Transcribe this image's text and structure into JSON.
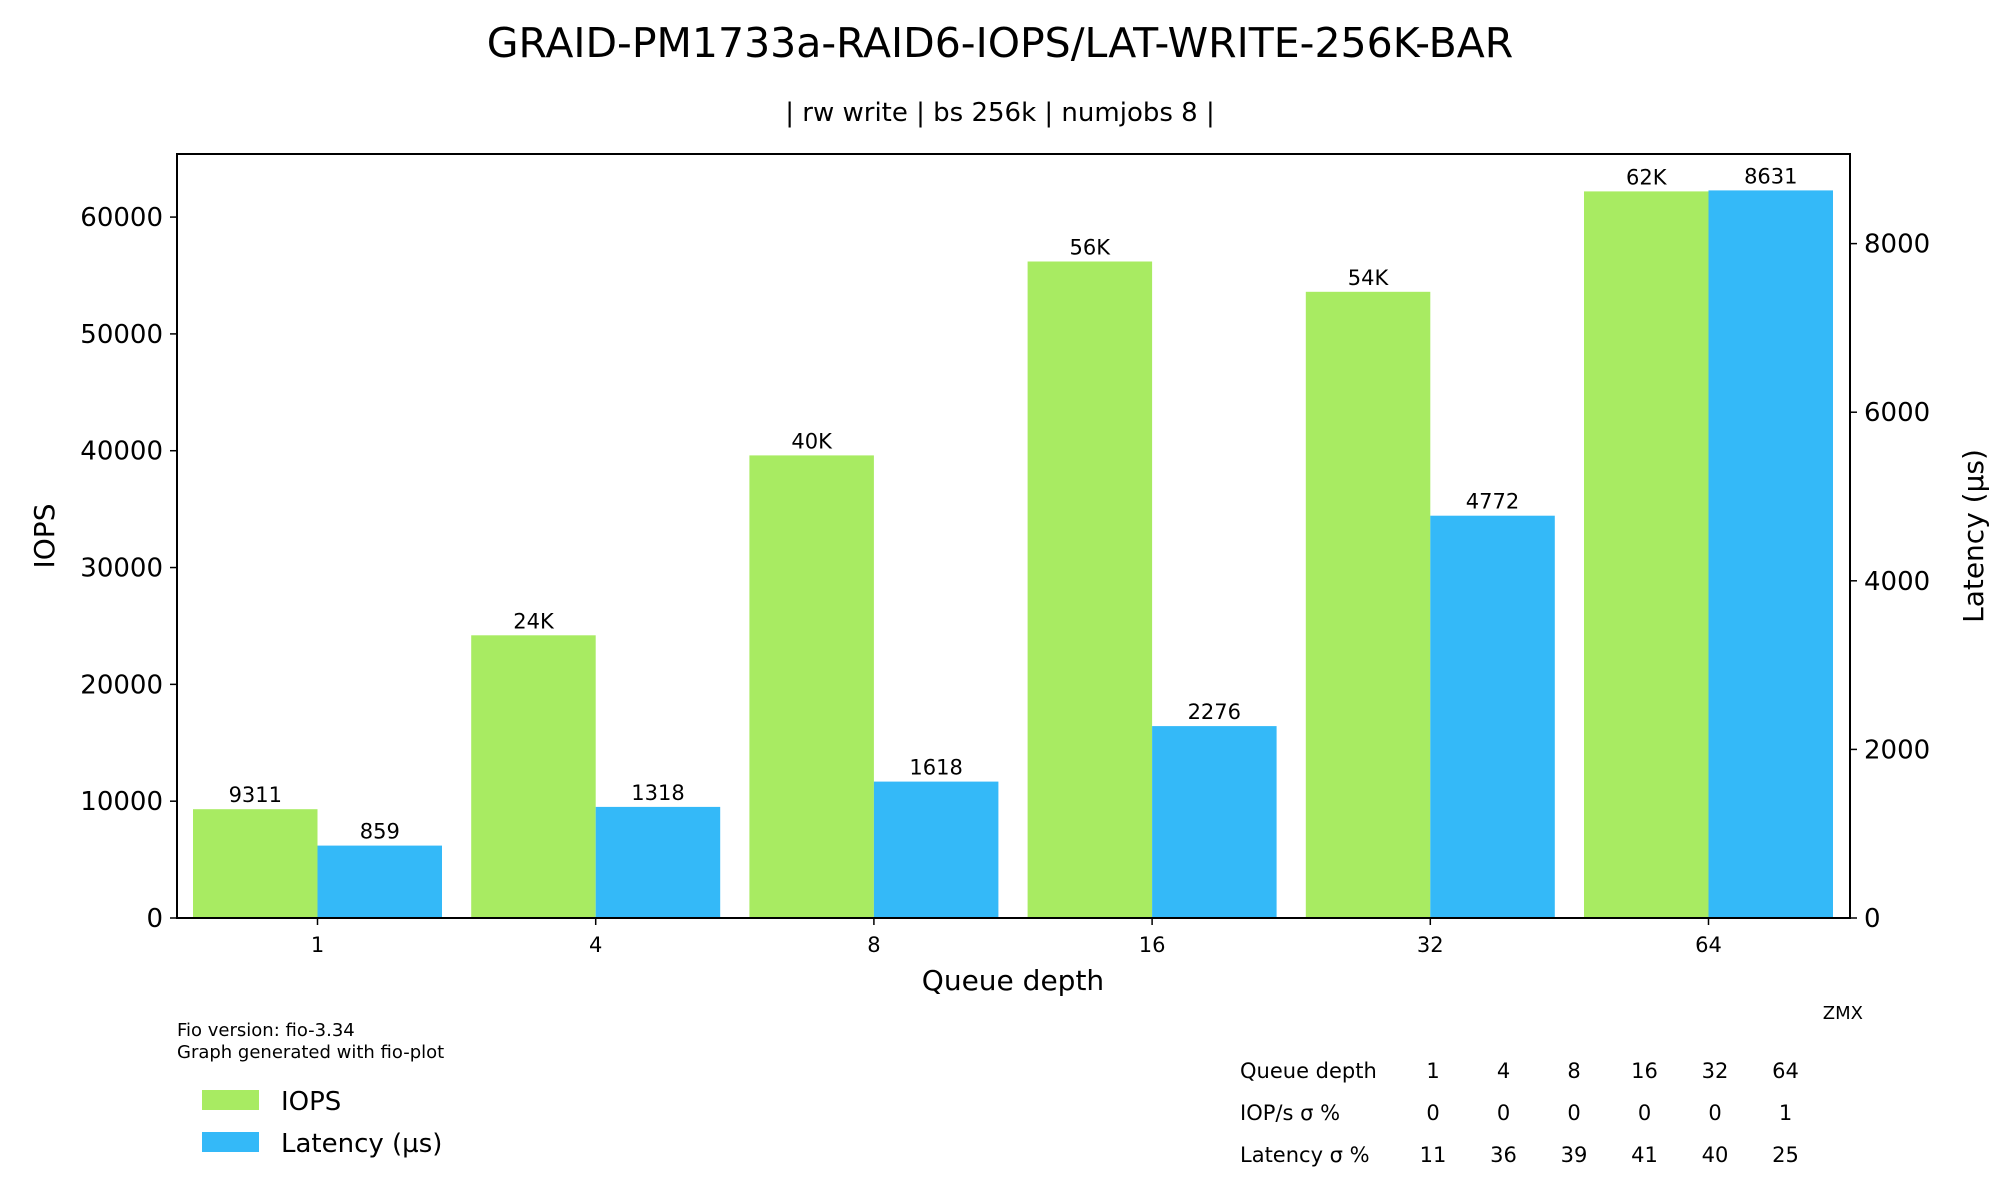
{
  "chart_data": {
    "type": "bar",
    "title": "GRAID-PM1733a-RAID6-IOPS/LAT-WRITE-256K-BAR",
    "subtitle": "| rw write | bs 256k | numjobs 8 |",
    "xlabel": "Queue depth",
    "ylabel_left": "IOPS",
    "ylabel_right": "Latency (µs)",
    "categories": [
      "1",
      "4",
      "8",
      "16",
      "32",
      "64"
    ],
    "ylim_left": [
      0,
      65400
    ],
    "ylim_right": [
      0,
      9063
    ],
    "yticks_left": [
      0,
      10000,
      20000,
      30000,
      40000,
      50000,
      60000
    ],
    "yticks_right": [
      0,
      2000,
      4000,
      6000,
      8000
    ],
    "grid": false,
    "series": [
      {
        "name": "IOPS",
        "axis": "left",
        "color": "#a8eb62",
        "values": [
          9311,
          24200,
          39600,
          56200,
          53600,
          62200
        ],
        "labels": [
          "9311",
          "24K",
          "40K",
          "56K",
          "54K",
          "62K"
        ]
      },
      {
        "name": "Latency (µs)",
        "axis": "right",
        "color": "#34b9f8",
        "values": [
          859,
          1318,
          1618,
          2276,
          4772,
          8631
        ],
        "labels": [
          "859",
          "1318",
          "1618",
          "2276",
          "4772",
          "8631"
        ]
      }
    ],
    "legend_placement": "bottom-left",
    "footnote_lines": [
      "Fio version: fio-3.34",
      "Graph generated with fio-plot"
    ],
    "corner_text": "ZMX",
    "stats_table": {
      "rows": [
        {
          "label": "Queue depth",
          "values": [
            "1",
            "4",
            "8",
            "16",
            "32",
            "64"
          ]
        },
        {
          "label": "IOP/s σ %",
          "values": [
            "0",
            "0",
            "0",
            "0",
            "0",
            "1"
          ]
        },
        {
          "label": "Latency σ %",
          "values": [
            "11",
            "36",
            "39",
            "41",
            "40",
            "25"
          ]
        }
      ]
    }
  }
}
